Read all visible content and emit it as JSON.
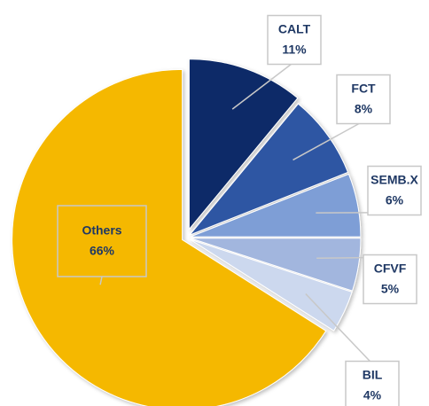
{
  "chart_data": {
    "type": "pie",
    "categories": [
      "CALT",
      "FCT",
      "SEMB.X",
      "CFVF",
      "BIL",
      "Others"
    ],
    "values": [
      11,
      8,
      6,
      5,
      4,
      66
    ],
    "value_labels": [
      "11%",
      "8%",
      "6%",
      "5%",
      "4%",
      "66%"
    ],
    "colors": [
      "#0b2a68",
      "#2f56a3",
      "#7e9ed6",
      "#a2b6de",
      "#ccd8ee",
      "#f5b800"
    ]
  }
}
